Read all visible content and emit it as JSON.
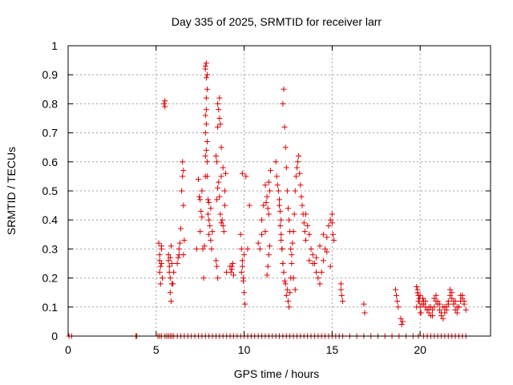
{
  "chart_data": {
    "type": "scatter",
    "title": "Day 335 of 2025, SRMTID for receiver larr",
    "xlabel": "GPS time / hours",
    "ylabel": "SRMTID / TECUs",
    "xlim": [
      0,
      24
    ],
    "ylim": [
      0,
      1
    ],
    "xticks": [
      0,
      5,
      10,
      15,
      20
    ],
    "xtick_labels": [
      "0",
      "5",
      "10",
      "15",
      "20"
    ],
    "yticks": [
      0,
      0.1,
      0.2,
      0.3,
      0.4,
      0.5,
      0.6,
      0.7,
      0.8,
      0.9,
      1
    ],
    "ytick_labels": [
      "0",
      "0.1",
      "0.2",
      "0.3",
      "0.4",
      "0.5",
      "0.6",
      "0.7",
      "0.8",
      "0.9",
      "1"
    ],
    "grid": true,
    "marker": "+",
    "color": "#e00000",
    "series": [
      {
        "name": "SRMTID",
        "x": [
          0.05,
          0.2,
          3.85,
          3.9,
          5.1,
          5.2,
          5.3,
          5.5,
          5.6,
          5.7,
          5.8,
          5.9,
          6.0,
          6.2,
          6.4,
          6.6,
          6.8,
          7.0,
          7.2,
          7.4,
          7.6,
          7.8,
          8.0,
          8.2,
          8.4,
          8.6,
          8.8,
          9.0,
          9.2,
          9.4,
          9.6,
          9.8,
          10.0,
          10.2,
          10.4,
          10.6,
          10.8,
          11.0,
          11.2,
          11.4,
          11.6,
          11.8,
          12.0,
          12.2,
          12.4,
          12.6,
          12.8,
          13.0,
          13.2,
          13.4,
          13.6,
          13.8,
          14.0,
          14.2,
          14.4,
          14.6,
          14.8,
          15.0,
          15.2,
          15.4,
          15.6,
          16.0,
          16.4,
          16.8,
          17.2,
          17.6,
          18.0,
          18.4,
          18.8,
          19.2,
          19.6,
          19.9,
          20.2,
          20.4,
          20.6,
          20.8,
          21.0,
          21.2,
          21.4,
          21.6,
          21.8,
          22.0,
          22.2,
          22.4,
          22.6,
          5.15,
          5.2,
          5.2,
          5.25,
          5.3,
          5.3,
          5.35,
          5.2,
          5.25,
          5.3,
          5.45,
          5.5,
          5.5,
          5.7,
          5.75,
          5.8,
          5.8,
          5.85,
          5.9,
          5.7,
          5.75,
          5.8,
          5.85,
          5.9,
          5.95,
          6.0,
          6.2,
          6.25,
          6.3,
          6.3,
          6.35,
          6.4,
          6.45,
          6.5,
          6.5,
          6.55,
          6.55,
          6.6,
          6.55,
          7.3,
          7.4,
          7.45,
          7.5,
          7.5,
          7.55,
          7.6,
          7.6,
          7.65,
          7.7,
          7.75,
          7.8,
          7.8,
          7.8,
          7.85,
          7.85,
          7.85,
          7.9,
          7.9,
          7.9,
          7.95,
          7.95,
          8.0,
          8.0,
          8.0,
          8.05,
          8.1,
          8.1,
          8.15,
          8.2,
          7.8,
          7.85,
          7.8,
          7.9,
          7.85,
          7.8,
          7.9,
          7.85,
          8.4,
          8.45,
          8.5,
          8.5,
          8.55,
          8.6,
          8.6,
          8.65,
          8.7,
          8.7,
          8.75,
          8.8,
          8.8,
          8.85,
          8.9,
          8.9,
          8.95,
          9.0,
          8.45,
          8.5,
          8.55,
          8.6,
          8.65,
          8.7,
          8.4,
          8.45,
          8.5,
          9.2,
          9.25,
          9.3,
          9.35,
          9.4,
          9.3,
          9.8,
          9.85,
          9.9,
          9.95,
          10.0,
          10.05,
          9.85,
          9.9,
          9.95,
          10.0,
          9.9,
          10.1,
          10.3,
          10.2,
          10.8,
          10.9,
          11.0,
          11.0,
          11.1,
          11.2,
          11.25,
          11.3,
          11.35,
          11.4,
          11.45,
          11.5,
          11.3,
          11.35,
          11.4,
          11.45,
          11.4,
          11.2,
          11.8,
          11.85,
          11.9,
          11.95,
          12.0,
          12.05,
          12.1,
          12.15,
          12.2,
          12.25,
          12.3,
          12.35,
          12.4,
          12.45,
          12.5,
          12.55,
          12.6,
          12.65,
          12.7,
          12.75,
          12.8,
          12.85,
          12.9,
          12.95,
          13.0,
          13.05,
          13.1,
          13.15,
          13.2,
          13.25,
          13.3,
          13.35,
          13.4,
          13.45,
          13.5,
          12.0,
          12.05,
          12.1,
          12.1,
          12.15,
          12.2,
          12.25,
          12.2,
          12.3,
          12.35,
          12.4,
          12.45,
          12.5,
          12.55,
          12.6,
          12.65,
          12.7,
          12.8,
          12.9,
          13.5,
          13.6,
          13.7,
          13.8,
          13.9,
          14.0,
          14.1,
          14.2,
          14.3,
          14.4,
          14.5,
          14.6,
          14.7,
          14.8,
          14.9,
          15.0,
          15.0,
          15.05,
          15.1,
          13.7,
          13.9,
          14.1,
          14.3,
          14.5,
          14.7,
          14.9,
          15.5,
          15.55,
          15.6,
          15.5,
          16.8,
          16.85,
          18.6,
          18.65,
          18.7,
          18.75,
          18.9,
          18.95,
          19.0,
          19.8,
          19.85,
          19.9,
          19.95,
          20.0,
          20.05,
          20.1,
          20.15,
          20.2,
          20.3,
          20.4,
          20.5,
          20.6,
          20.7,
          20.8,
          20.9,
          21.0,
          21.1,
          21.2,
          21.3,
          21.4,
          21.5,
          21.6,
          21.7,
          21.8,
          21.9,
          22.0,
          22.1,
          22.2,
          22.3,
          22.4,
          22.5,
          19.8,
          19.9,
          20.0,
          20.2,
          20.4,
          20.6,
          20.8,
          21.0,
          21.2,
          21.4,
          21.6,
          21.8,
          22.0,
          22.2,
          22.4,
          22.6,
          19.85,
          19.95,
          20.0,
          20.3,
          20.5,
          20.7,
          20.9,
          21.1,
          21.3,
          21.5,
          21.7,
          21.9,
          22.1,
          22.3,
          22.5
        ],
        "y": [
          0,
          0,
          0,
          0,
          0,
          0,
          0,
          0,
          0,
          0,
          0,
          0,
          0,
          0,
          0,
          0,
          0,
          0,
          0,
          0,
          0,
          0,
          0,
          0,
          0,
          0,
          0,
          0,
          0,
          0,
          0,
          0,
          0,
          0,
          0,
          0,
          0,
          0,
          0,
          0,
          0,
          0,
          0,
          0,
          0,
          0,
          0,
          0,
          0,
          0,
          0,
          0,
          0,
          0,
          0,
          0,
          0,
          0,
          0,
          0,
          0,
          0,
          0,
          0,
          0,
          0,
          0,
          0,
          0,
          0,
          0,
          0,
          0,
          0,
          0,
          0,
          0,
          0,
          0,
          0,
          0,
          0,
          0,
          0,
          0,
          0.32,
          0.28,
          0.22,
          0.18,
          0.25,
          0.3,
          0.2,
          0.26,
          0.24,
          0.31,
          0.8,
          0.79,
          0.81,
          0.28,
          0.22,
          0.15,
          0.2,
          0.12,
          0.18,
          0.26,
          0.24,
          0.27,
          0.31,
          0.25,
          0.18,
          0.22,
          0.25,
          0.27,
          0.28,
          0.3,
          0.32,
          0.37,
          0.5,
          0.6,
          0.55,
          0.57,
          0.45,
          0.33,
          0.28,
          0.3,
          0.54,
          0.48,
          0.36,
          0.47,
          0.43,
          0.41,
          0.5,
          0.3,
          0.2,
          0.31,
          0.55,
          0.62,
          0.7,
          0.73,
          0.78,
          0.82,
          0.85,
          0.6,
          0.55,
          0.47,
          0.42,
          0.46,
          0.35,
          0.4,
          0.38,
          0.44,
          0.33,
          0.3,
          0.36,
          0.92,
          0.94,
          0.93,
          0.9,
          0.89,
          0.76,
          0.67,
          0.64,
          0.26,
          0.24,
          0.2,
          0.8,
          0.78,
          0.75,
          0.82,
          0.73,
          0.65,
          0.55,
          0.4,
          0.38,
          0.58,
          0.36,
          0.45,
          0.5,
          0.56,
          0.22,
          0.47,
          0.51,
          0.53,
          0.48,
          0.42,
          0.39,
          0.62,
          0.6,
          0.72,
          0.24,
          0.22,
          0.23,
          0.25,
          0.21,
          0.24,
          0.35,
          0.3,
          0.24,
          0.2,
          0.15,
          0.11,
          0.22,
          0.26,
          0.19,
          0.28,
          0.56,
          0.55,
          0.45,
          0.3,
          0.32,
          0.3,
          0.35,
          0.4,
          0.45,
          0.52,
          0.46,
          0.48,
          0.44,
          0.42,
          0.5,
          0.57,
          0.21,
          0.24,
          0.28,
          0.31,
          0.53,
          0.36,
          0.6,
          0.55,
          0.52,
          0.5,
          0.45,
          0.38,
          0.33,
          0.3,
          0.25,
          0.22,
          0.19,
          0.18,
          0.14,
          0.16,
          0.12,
          0.1,
          0.15,
          0.2,
          0.28,
          0.32,
          0.36,
          0.42,
          0.5,
          0.55,
          0.58,
          0.6,
          0.62,
          0.56,
          0.52,
          0.48,
          0.45,
          0.42,
          0.39,
          0.36,
          0.33,
          0.47,
          0.43,
          0.4,
          0.35,
          0.3,
          0.25,
          0.85,
          0.8,
          0.72,
          0.65,
          0.58,
          0.5,
          0.44,
          0.4,
          0.36,
          0.3,
          0.25,
          0.2,
          0.16,
          0.42,
          0.38,
          0.35,
          0.3,
          0.28,
          0.25,
          0.22,
          0.2,
          0.18,
          0.22,
          0.26,
          0.3,
          0.34,
          0.38,
          0.4,
          0.42,
          0.39,
          0.35,
          0.33,
          0.26,
          0.25,
          0.27,
          0.31,
          0.35,
          0.29,
          0.24,
          0.18,
          0.14,
          0.12,
          0.16,
          0.11,
          0.08,
          0.16,
          0.14,
          0.12,
          0.1,
          0.06,
          0.04,
          0.05,
          0.17,
          0.16,
          0.14,
          0.12,
          0.1,
          0.08,
          0.11,
          0.13,
          0.12,
          0.1,
          0.09,
          0.08,
          0.07,
          0.09,
          0.1,
          0.12,
          0.11,
          0.09,
          0.07,
          0.06,
          0.08,
          0.1,
          0.12,
          0.14,
          0.13,
          0.11,
          0.09,
          0.08,
          0.1,
          0.12,
          0.13,
          0.11,
          0.1,
          0.12,
          0.14,
          0.11,
          0.09,
          0.1,
          0.13,
          0.12,
          0.08,
          0.1,
          0.11,
          0.15,
          0.12,
          0.1,
          0.14,
          0.09,
          0.15,
          0.13,
          0.08,
          0.12,
          0.1,
          0.07,
          0.14,
          0.11,
          0.1,
          0.09,
          0.16,
          0.12,
          0.1,
          0.14,
          0.12
        ]
      }
    ]
  }
}
